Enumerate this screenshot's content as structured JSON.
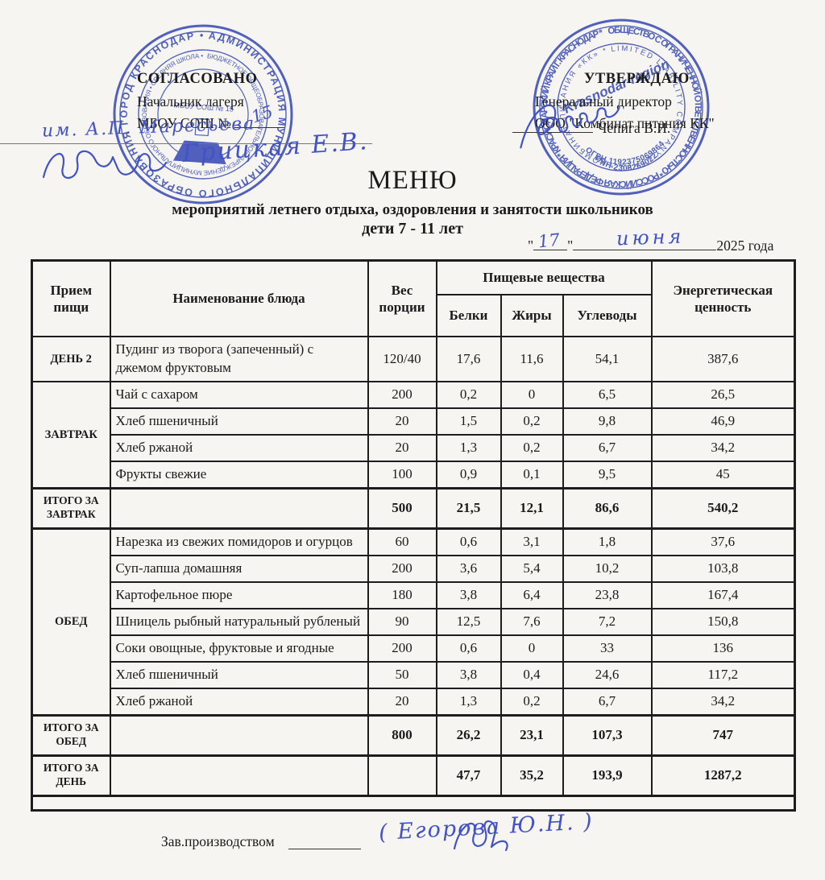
{
  "colors": {
    "stamp_blue": "#3b4ec0",
    "ink_blue": "#4353c5",
    "paper": "#f6f5f1",
    "text": "#1b1b1b"
  },
  "approval": {
    "left": {
      "title": "СОГЛАСОВАНО",
      "line1": "Начальник лагеря",
      "line2": "МБОУ СОШ №"
    },
    "right": {
      "title": "УТВЕРЖДАЮ",
      "line1": "Генеральный директор",
      "line2": "ООО \"Комбинат питания КК\"",
      "name": "Чепига В.И."
    }
  },
  "handwriting": {
    "school_number": "15",
    "left_line": "им. А.П. Маресьева",
    "left_name": "Грицкая Е.В.",
    "date_day": "17",
    "date_month": "июня",
    "footer_name": "( Егорова Ю.Н. )"
  },
  "stamps": {
    "left": {
      "outer_ring": "АДМИНИСТРАЦИЯ МУНИЦИПАЛЬНОГО ОБРАЗОВАНИЯ ГОРОД КРАСНОДАР • ",
      "inner_ring": "БЮДЖЕТНОЕ ОБЩЕОБРАЗОВАТЕЛЬНОЕ УЧРЕЖДЕНИЕ МУНИЦИПАЛЬНОГО ОБРАЗОВАНИЯ • СРЕДНЯЯ ШКОЛА • ",
      "center": "МБОУ СОШ № 15"
    },
    "right": {
      "outer_ring": "ОБЩЕСТВО С ОГРАНИЧЕННОЙ ОТВЕТСТВЕННОСТЬЮ * РОССИЙСКАЯ ФЕДЕРАЦИЯ * КРАСНОДАРСКИЙ КРАЙ Г. КРАСНОДАР * ",
      "inner_ring": "LIMITED LIABILITY COMPANY «THE» * КОМБИНАТ ПИТАНИЯ «КК» * ",
      "center": "Krasnodar region",
      "ogrn": "ОГРН 1192375069864",
      "inn": "ИНН 2308269022"
    }
  },
  "header": {
    "title": "МЕНЮ",
    "subtitle": "мероприятий летнего отдыха, оздоровления и занятости школьников",
    "age_line": "дети 7 - 11 лет",
    "date": {
      "quote_open": "\"",
      "quote_close": "\"",
      "year": "2025 года"
    }
  },
  "table": {
    "header": {
      "meal": "Прием\nпищи",
      "dish": "Наименование блюда",
      "weight": "Вес\nпорции",
      "nutrients": "Пищевые вещества",
      "protein": "Белки",
      "fat": "Жиры",
      "carbs": "Углеводы",
      "energy": "Энергетическая\nценность"
    },
    "rows": [
      {
        "type": "item",
        "group": {
          "label": "ДЕНЬ 2",
          "rowspan": 1
        },
        "dish": "Пудинг из творога (запеченный) с джемом фруктовым",
        "weight": "120/40",
        "protein": "17,6",
        "fat": "11,6",
        "carbs": "54,1",
        "energy": "387,6"
      },
      {
        "type": "item",
        "group": {
          "label": "ЗАВТРАК",
          "rowspan": 4
        },
        "dish": "Чай с сахаром",
        "weight": "200",
        "protein": "0,2",
        "fat": "0",
        "carbs": "6,5",
        "energy": "26,5"
      },
      {
        "type": "item",
        "dish": "Хлеб пшеничный",
        "weight": "20",
        "protein": "1,5",
        "fat": "0,2",
        "carbs": "9,8",
        "energy": "46,9"
      },
      {
        "type": "item",
        "dish": "Хлеб ржаной",
        "weight": "20",
        "protein": "1,3",
        "fat": "0,2",
        "carbs": "6,7",
        "energy": "34,2"
      },
      {
        "type": "item",
        "dish": "Фрукты свежие",
        "weight": "100",
        "protein": "0,9",
        "fat": "0,1",
        "carbs": "9,5",
        "energy": "45"
      },
      {
        "type": "total",
        "label": "ИТОГО ЗА ЗАВТРАК",
        "dish": "",
        "weight": "500",
        "protein": "21,5",
        "fat": "12,1",
        "carbs": "86,6",
        "energy": "540,2"
      },
      {
        "type": "item",
        "group": {
          "label": "ОБЕД",
          "rowspan": 7
        },
        "dish": "Нарезка из свежих помидоров и огурцов",
        "weight": "60",
        "protein": "0,6",
        "fat": "3,1",
        "carbs": "1,8",
        "energy": "37,6"
      },
      {
        "type": "item",
        "dish": "Суп-лапша домашняя",
        "weight": "200",
        "protein": "3,6",
        "fat": "5,4",
        "carbs": "10,2",
        "energy": "103,8"
      },
      {
        "type": "item",
        "dish": "Картофельное пюре",
        "weight": "180",
        "protein": "3,8",
        "fat": "6,4",
        "carbs": "23,8",
        "energy": "167,4"
      },
      {
        "type": "item",
        "dish": "Шницель рыбный натуральный рубленый",
        "weight": "90",
        "protein": "12,5",
        "fat": "7,6",
        "carbs": "7,2",
        "energy": "150,8"
      },
      {
        "type": "item",
        "dish": "Соки овощные,  фруктовые и ягодные",
        "weight": "200",
        "protein": "0,6",
        "fat": "0",
        "carbs": "33",
        "energy": "136"
      },
      {
        "type": "item",
        "dish": "Хлеб пшеничный",
        "weight": "50",
        "protein": "3,8",
        "fat": "0,4",
        "carbs": "24,6",
        "energy": "117,2"
      },
      {
        "type": "item",
        "dish": "Хлеб ржаной",
        "weight": "20",
        "protein": "1,3",
        "fat": "0,2",
        "carbs": "6,7",
        "energy": "34,2"
      },
      {
        "type": "total",
        "label": "ИТОГО ЗА ОБЕД",
        "dish": "",
        "weight": "800",
        "protein": "26,2",
        "fat": "23,1",
        "carbs": "107,3",
        "energy": "747"
      },
      {
        "type": "total",
        "label": "ИТОГО ЗА ДЕНЬ",
        "dish": "",
        "weight": "",
        "protein": "47,7",
        "fat": "35,2",
        "carbs": "193,9",
        "energy": "1287,2"
      },
      {
        "type": "spacer"
      }
    ]
  },
  "footer": {
    "label": "Зав.производством"
  }
}
